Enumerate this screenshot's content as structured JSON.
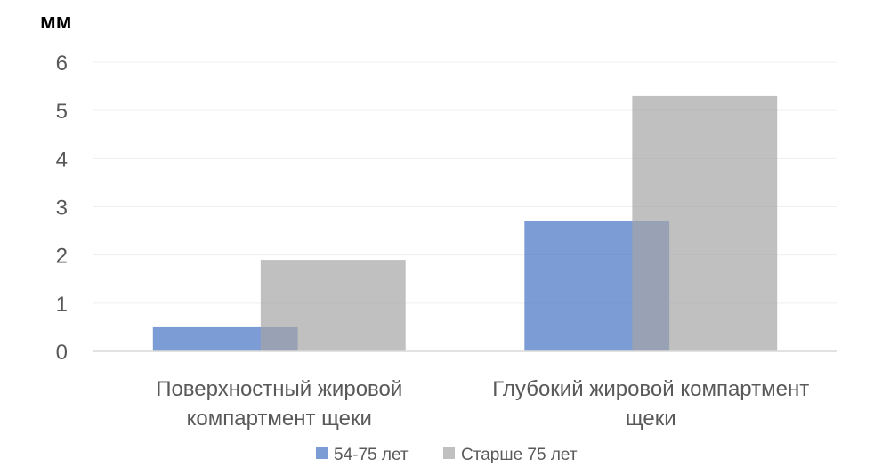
{
  "chart_data": {
    "type": "bar",
    "ylabel": "мм",
    "ylim": [
      0,
      6
    ],
    "yticks": [
      "0",
      "1",
      "2",
      "3",
      "4",
      "5",
      "6"
    ],
    "grid": true,
    "legend_position": "bottom",
    "categories": [
      [
        "Поверхностный жировой",
        "компартмент щеки"
      ],
      [
        "Глубокий жировой компартмент",
        "щеки"
      ]
    ],
    "series": [
      {
        "name": "54-75 лет",
        "values": [
          0.5,
          2.7
        ],
        "color": "#4472C4"
      },
      {
        "name": "Старше 75 лет",
        "values": [
          1.9,
          5.3
        ],
        "color": "#A5A5A5"
      }
    ]
  }
}
